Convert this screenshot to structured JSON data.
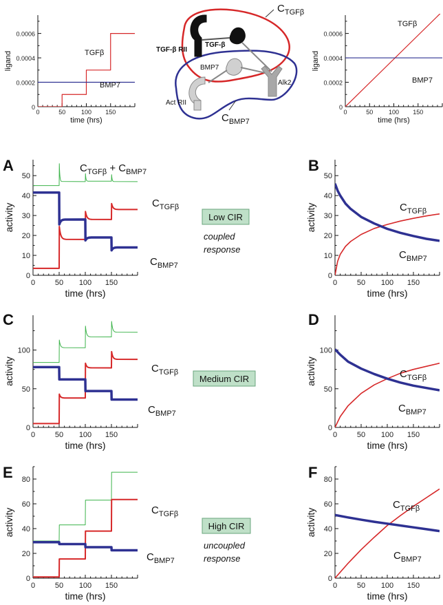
{
  "colors": {
    "tgf": "#d62728",
    "bmp": "#2e3192",
    "sum": "#3cb34a",
    "cirbox": "#bfe0c8",
    "cirborder": "#6aa57c"
  },
  "labels": {
    "sub_beta": "TGFβ",
    "sub_bmp": "BMP7",
    "sum_plus": " + ",
    "c_letter": "C"
  },
  "cir_notes": {
    "low": "Low CIR",
    "medium": "Medium CIR",
    "high": "High CIR",
    "coupled_1": "coupled",
    "coupled_2": "response",
    "uncoupled_1": "uncoupled",
    "uncoupled_2": "response"
  },
  "diagram": {
    "label_tgfbrii": "TGF-β RII",
    "label_tgfb": "TGF-β",
    "label_bmp7": "BMP7",
    "label_alk2": "Alk2",
    "label_actrii": "Act RII",
    "c_tgf_main": "C",
    "c_tgf_sub": "TGFβ",
    "c_bmp_main": "C",
    "c_bmp_sub": "BMP7"
  },
  "chart_data": [
    {
      "id": "input-left",
      "type": "line",
      "xlabel": "time (hrs)",
      "ylabel": "ligand",
      "xlim": [
        0,
        200
      ],
      "ylim": [
        0,
        0.00075
      ],
      "xticks": [
        0,
        50,
        100,
        150
      ],
      "yticks": [
        0,
        0.0002,
        0.0004,
        0.0006
      ],
      "ytick_labels": [
        "0",
        "0.0002",
        "0.0004",
        "0.0006"
      ],
      "series": [
        {
          "name": "TGFβ",
          "color": "tgf",
          "x": [
            0,
            50,
            50,
            100,
            100,
            150,
            150,
            200
          ],
          "y": [
            0,
            0,
            0.0001,
            0.0001,
            0.0003,
            0.0003,
            0.0006,
            0.0006
          ]
        },
        {
          "name": "BMP7",
          "color": "bmp",
          "x": [
            0,
            200
          ],
          "y": [
            0.0002,
            0.0002
          ]
        }
      ]
    },
    {
      "id": "input-right",
      "type": "line",
      "xlabel": "time (hrs)",
      "ylabel": "ligand",
      "xlim": [
        0,
        200
      ],
      "ylim": [
        0,
        0.00075
      ],
      "xticks": [
        0,
        50,
        100,
        150
      ],
      "yticks": [
        0,
        0.0002,
        0.0004,
        0.0006
      ],
      "ytick_labels": [
        "0",
        "0.0002",
        "0.0004",
        "0.0006"
      ],
      "series": [
        {
          "name": "TGFβ",
          "color": "tgf",
          "x": [
            0,
            200
          ],
          "y": [
            0,
            0.00078
          ]
        },
        {
          "name": "BMP7",
          "color": "bmp",
          "x": [
            0,
            200
          ],
          "y": [
            0.0004,
            0.0004
          ]
        }
      ]
    },
    {
      "id": "A",
      "type": "line",
      "xlabel": "time (hrs)",
      "ylabel": "activity",
      "xlim": [
        0,
        200
      ],
      "ylim": [
        0,
        58
      ],
      "xticks": [
        0,
        50,
        100,
        150
      ],
      "yticks": [
        0,
        10,
        20,
        30,
        40,
        50
      ],
      "series": [
        {
          "name": "sum",
          "color": "sum",
          "width": 1,
          "steps": [
            45,
            47,
            47.2,
            47
          ],
          "spikes": [
            56,
            51,
            50.5
          ],
          "settle": 3
        },
        {
          "name": "TGFβ",
          "color": "tgf",
          "width": 2,
          "steps": [
            3.5,
            18,
            28,
            33
          ],
          "spikes": [
            24.5,
            32,
            36
          ],
          "settle": 8
        },
        {
          "name": "BMP7",
          "color": "bmp",
          "width": 3.5,
          "steps": [
            41.5,
            28,
            19,
            14
          ],
          "dips": [
            25.5,
            17.5,
            12.5
          ],
          "settle": 8
        }
      ]
    },
    {
      "id": "B",
      "type": "line",
      "xlabel": "time (hrs)",
      "ylabel": "activity",
      "xlim": [
        0,
        200
      ],
      "ylim": [
        0,
        58
      ],
      "xticks": [
        0,
        50,
        100,
        150
      ],
      "yticks": [
        0,
        10,
        20,
        30,
        40,
        50
      ],
      "series": [
        {
          "name": "TGFβ",
          "color": "tgf",
          "width": 1.6,
          "x": [
            0,
            5,
            10,
            20,
            30,
            50,
            75,
            100,
            125,
            150,
            175,
            200
          ],
          "y": [
            0,
            7,
            10.5,
            14.5,
            17,
            20.5,
            23.5,
            25.5,
            27.2,
            28.6,
            29.8,
            30.8
          ]
        },
        {
          "name": "BMP7",
          "color": "bmp",
          "width": 3.5,
          "x": [
            0,
            5,
            10,
            20,
            30,
            50,
            75,
            100,
            125,
            150,
            175,
            200
          ],
          "y": [
            46,
            42.5,
            40,
            36,
            33.3,
            29.3,
            26,
            23.3,
            21.3,
            19.7,
            18.3,
            17.3
          ]
        }
      ]
    },
    {
      "id": "C",
      "type": "line",
      "xlabel": "time (hrs)",
      "ylabel": "activity",
      "xlim": [
        0,
        200
      ],
      "ylim": [
        0,
        145
      ],
      "xticks": [
        0,
        50,
        100,
        150
      ],
      "yticks": [
        0,
        50,
        100
      ],
      "series": [
        {
          "name": "sum",
          "color": "sum",
          "width": 1,
          "steps": [
            84,
            103,
            117,
            123
          ],
          "spikes": [
            113,
            131,
            137
          ],
          "settle": 6
        },
        {
          "name": "TGFβ",
          "color": "tgf",
          "width": 2,
          "steps": [
            5,
            38,
            77,
            88
          ],
          "spikes": [
            43,
            83,
            98
          ],
          "settle": 7
        },
        {
          "name": "BMP7",
          "color": "bmp",
          "width": 3.5,
          "steps": [
            78,
            62,
            47,
            36
          ],
          "settle": 3
        }
      ]
    },
    {
      "id": "D",
      "type": "line",
      "xlabel": "time (hrs)",
      "ylabel": "activity",
      "xlim": [
        0,
        200
      ],
      "ylim": [
        0,
        145
      ],
      "xticks": [
        0,
        50,
        100,
        150
      ],
      "yticks": [
        0,
        50,
        100
      ],
      "series": [
        {
          "name": "TGFβ",
          "color": "tgf",
          "width": 1.6,
          "x": [
            0,
            10,
            25,
            50,
            75,
            100,
            125,
            150,
            175,
            200
          ],
          "y": [
            0,
            14,
            28,
            44,
            55,
            63,
            70,
            75,
            79,
            83
          ]
        },
        {
          "name": "BMP7",
          "color": "bmp",
          "width": 3.5,
          "x": [
            0,
            10,
            25,
            50,
            75,
            100,
            125,
            150,
            175,
            200
          ],
          "y": [
            101,
            94,
            85,
            76,
            69,
            63,
            58,
            54,
            51,
            48
          ]
        }
      ]
    },
    {
      "id": "E",
      "type": "line",
      "xlabel": "time (hrs)",
      "ylabel": "activity",
      "xlim": [
        0,
        200
      ],
      "ylim": [
        0,
        90
      ],
      "xticks": [
        0,
        50,
        100,
        150
      ],
      "yticks": [
        0,
        20,
        40,
        60,
        80
      ],
      "series": [
        {
          "name": "sum",
          "color": "sum",
          "width": 1,
          "steps": [
            30,
            43,
            63,
            85.5
          ],
          "settle": 2
        },
        {
          "name": "TGFβ",
          "color": "tgf",
          "width": 2,
          "steps": [
            1,
            15.5,
            38,
            63.5
          ],
          "settle": 2
        },
        {
          "name": "BMP7",
          "color": "bmp",
          "width": 3.5,
          "steps": [
            29,
            27.5,
            25,
            22.5
          ],
          "settle": 2
        }
      ]
    },
    {
      "id": "F",
      "type": "line",
      "xlabel": "time (hrs)",
      "ylabel": "activity",
      "xlim": [
        0,
        200
      ],
      "ylim": [
        0,
        90
      ],
      "xticks": [
        0,
        50,
        100,
        150
      ],
      "yticks": [
        0,
        20,
        40,
        60,
        80
      ],
      "series": [
        {
          "name": "TGFβ",
          "color": "tgf",
          "width": 1.6,
          "x": [
            0,
            25,
            50,
            75,
            100,
            125,
            150,
            175,
            200
          ],
          "y": [
            0,
            12,
            23,
            33,
            42.5,
            50.5,
            58,
            65,
            72
          ]
        },
        {
          "name": "BMP7",
          "color": "bmp",
          "width": 3.5,
          "x": [
            0,
            25,
            50,
            75,
            100,
            125,
            150,
            175,
            200
          ],
          "y": [
            51,
            49,
            47.2,
            45.5,
            44,
            42.5,
            41,
            39.5,
            38
          ]
        }
      ]
    }
  ]
}
